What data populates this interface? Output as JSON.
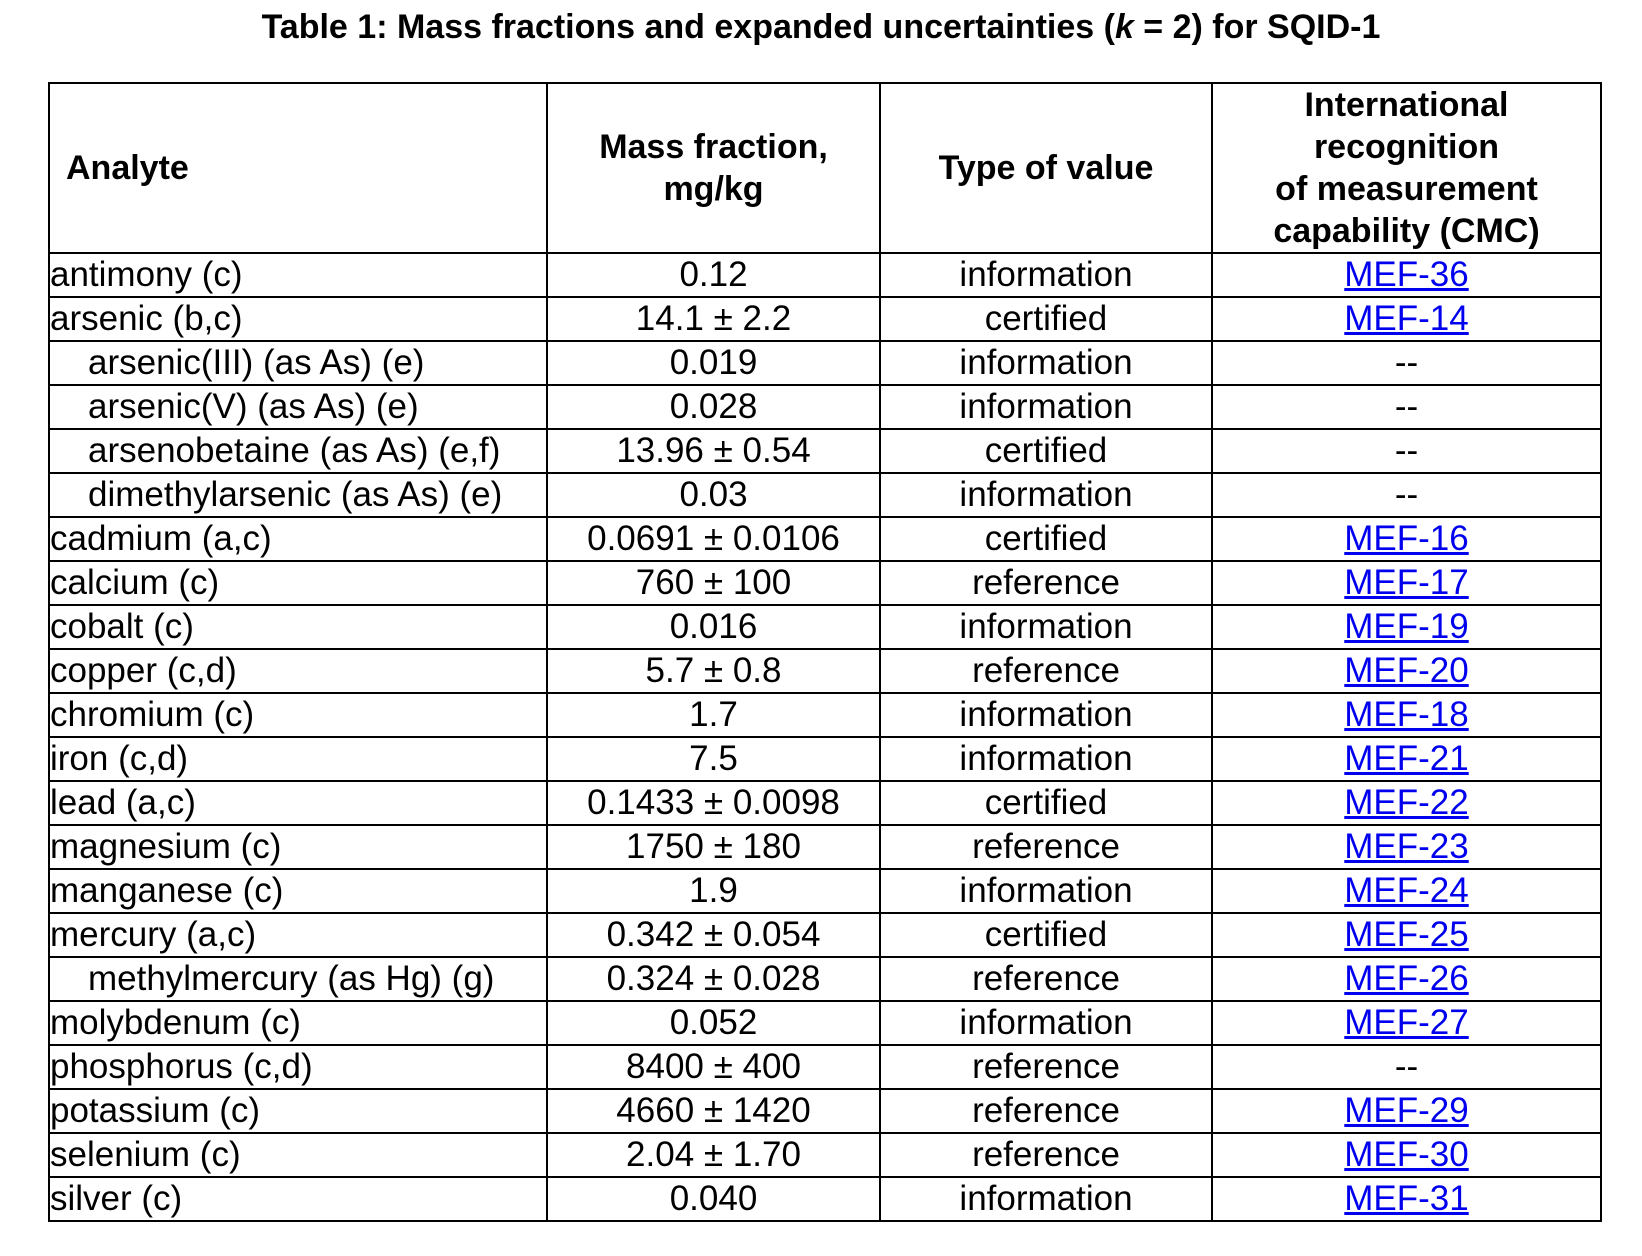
{
  "title": {
    "prefix": "Table 1: Mass fractions and expanded uncertainties (",
    "k": "k",
    "suffix": " = 2) for SQID-1"
  },
  "headers": {
    "analyte": "Analyte",
    "mass_fraction": [
      "Mass fraction,",
      "mg/kg"
    ],
    "type_of_value": "Type of value",
    "cmc": [
      "International",
      "recognition",
      "of measurement",
      "capability (CMC)"
    ]
  },
  "rows": [
    {
      "analyte": "antimony (c)",
      "sub": false,
      "mass_fraction": "0.12",
      "type": "information",
      "cmc": "MEF-36",
      "cmc_link": true
    },
    {
      "analyte": "arsenic (b,c)",
      "sub": false,
      "mass_fraction": "14.1 ± 2.2",
      "type": "certified",
      "cmc": "MEF-14",
      "cmc_link": true
    },
    {
      "analyte": "arsenic(III) (as As) (e)",
      "sub": true,
      "mass_fraction": "0.019",
      "type": "information",
      "cmc": "--",
      "cmc_link": false
    },
    {
      "analyte": "arsenic(V) (as As) (e)",
      "sub": true,
      "mass_fraction": "0.028",
      "type": "information",
      "cmc": "--",
      "cmc_link": false
    },
    {
      "analyte": "arsenobetaine (as As) (e,f)",
      "sub": true,
      "mass_fraction": "13.96 ± 0.54",
      "type": "certified",
      "cmc": "--",
      "cmc_link": false
    },
    {
      "analyte": "dimethylarsenic (as As) (e)",
      "sub": true,
      "mass_fraction": "0.03",
      "type": "information",
      "cmc": "--",
      "cmc_link": false
    },
    {
      "analyte": "cadmium (a,c)",
      "sub": false,
      "mass_fraction": "0.0691 ± 0.0106",
      "type": "certified",
      "cmc": "MEF-16",
      "cmc_link": true
    },
    {
      "analyte": "calcium (c)",
      "sub": false,
      "mass_fraction": "760 ± 100",
      "type": "reference",
      "cmc": "MEF-17",
      "cmc_link": true
    },
    {
      "analyte": "cobalt (c)",
      "sub": false,
      "mass_fraction": "0.016",
      "type": "information",
      "cmc": "MEF-19",
      "cmc_link": true
    },
    {
      "analyte": "copper (c,d)",
      "sub": false,
      "mass_fraction": "5.7 ± 0.8",
      "type": "reference",
      "cmc": "MEF-20",
      "cmc_link": true
    },
    {
      "analyte": "chromium (c)",
      "sub": false,
      "mass_fraction": "1.7",
      "type": "information",
      "cmc": "MEF-18",
      "cmc_link": true
    },
    {
      "analyte": "iron (c,d)",
      "sub": false,
      "mass_fraction": "7.5",
      "type": "information",
      "cmc": "MEF-21",
      "cmc_link": true
    },
    {
      "analyte": "lead (a,c)",
      "sub": false,
      "mass_fraction": "0.1433 ± 0.0098",
      "type": "certified",
      "cmc": "MEF-22",
      "cmc_link": true
    },
    {
      "analyte": "magnesium (c)",
      "sub": false,
      "mass_fraction": "1750 ± 180",
      "type": "reference",
      "cmc": "MEF-23",
      "cmc_link": true
    },
    {
      "analyte": "manganese (c)",
      "sub": false,
      "mass_fraction": "1.9",
      "type": "information",
      "cmc": "MEF-24",
      "cmc_link": true
    },
    {
      "analyte": "mercury (a,c)",
      "sub": false,
      "mass_fraction": "0.342 ± 0.054",
      "type": "certified",
      "cmc": "MEF-25",
      "cmc_link": true
    },
    {
      "analyte": "methylmercury (as Hg) (g)",
      "sub": true,
      "mass_fraction": "0.324 ± 0.028",
      "type": "reference",
      "cmc": "MEF-26",
      "cmc_link": true
    },
    {
      "analyte": "molybdenum (c)",
      "sub": false,
      "mass_fraction": "0.052",
      "type": "information",
      "cmc": "MEF-27",
      "cmc_link": true
    },
    {
      "analyte": "phosphorus (c,d)",
      "sub": false,
      "mass_fraction": "8400 ± 400",
      "type": "reference",
      "cmc": "--",
      "cmc_link": false
    },
    {
      "analyte": "potassium (c)",
      "sub": false,
      "mass_fraction": "4660 ± 1420",
      "type": "reference",
      "cmc": "MEF-29",
      "cmc_link": true
    },
    {
      "analyte": "selenium (c)",
      "sub": false,
      "mass_fraction": "2.04 ± 1.70",
      "type": "reference",
      "cmc": "MEF-30",
      "cmc_link": true
    },
    {
      "analyte": "silver (c)",
      "sub": false,
      "mass_fraction": "0.040",
      "type": "information",
      "cmc": "MEF-31",
      "cmc_link": true
    }
  ],
  "colors": {
    "link": "#0000ee",
    "border": "#000000",
    "text": "#000000"
  }
}
